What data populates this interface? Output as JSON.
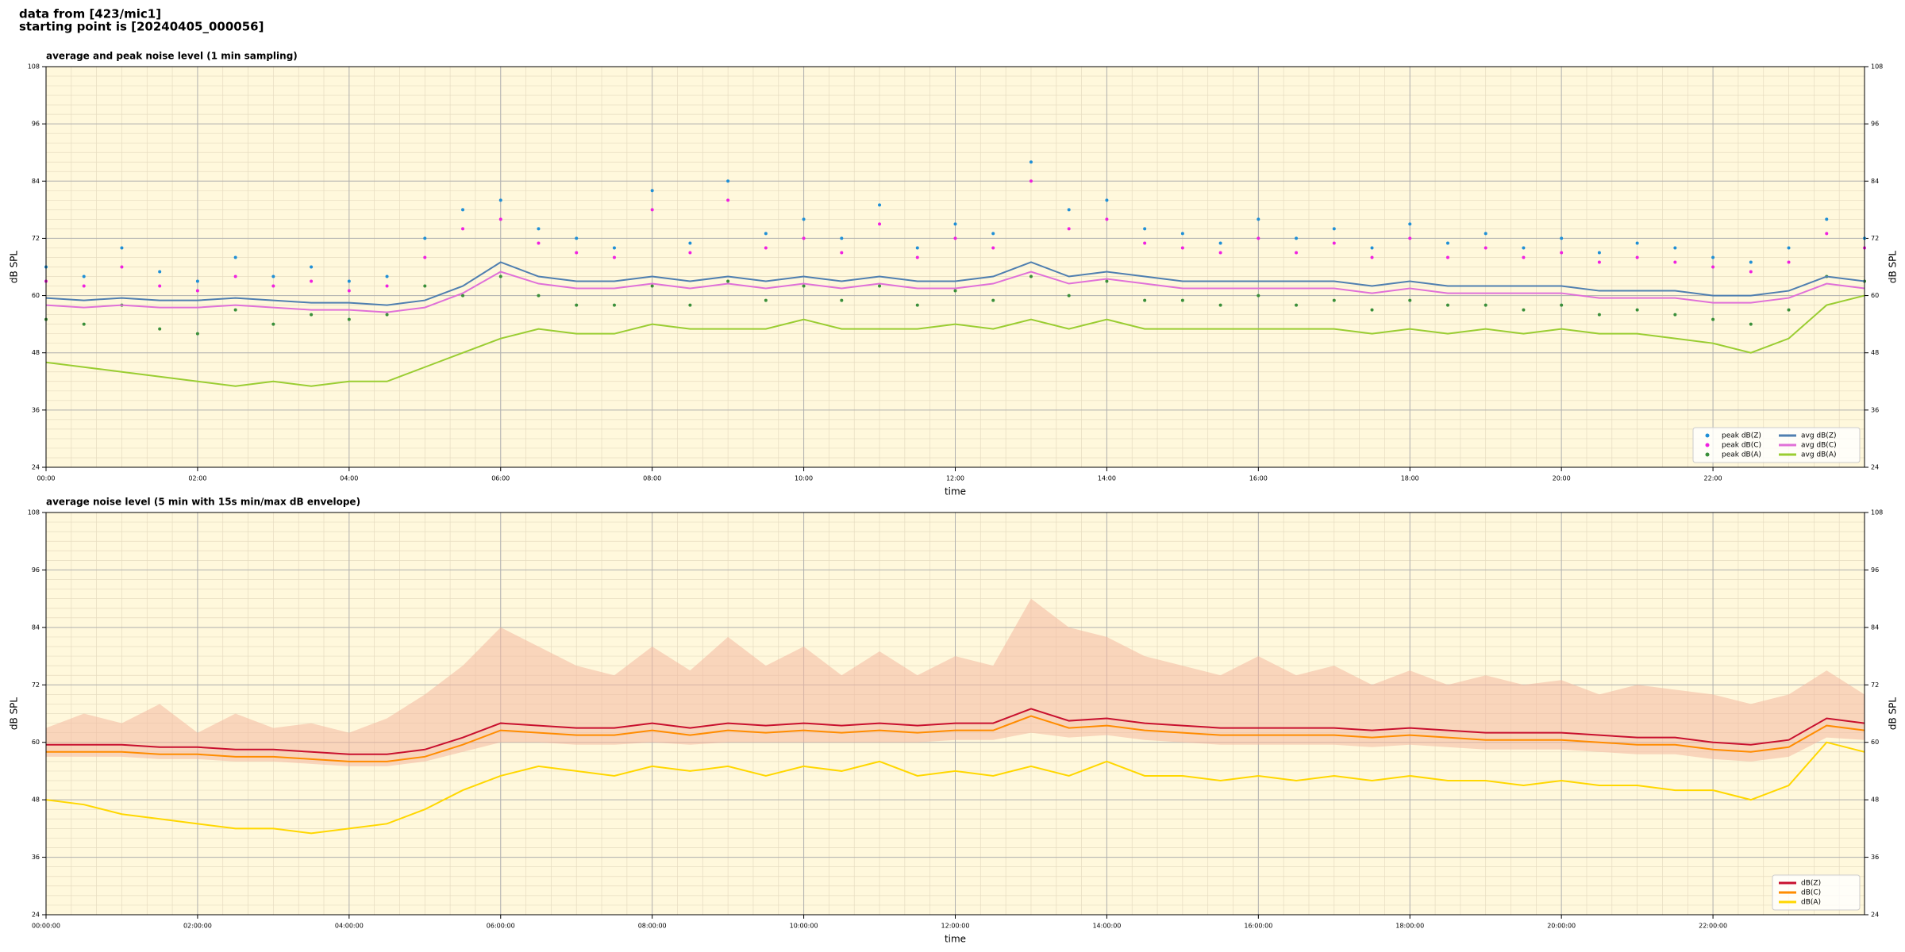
{
  "header": [
    "data from [423/mic1]",
    "starting point is [20240405_000056]"
  ],
  "chart_data": [
    {
      "type": "line",
      "title": "average and peak noise level (1 min sampling)",
      "xlabel": "time",
      "ylabel": "dB SPL",
      "background": "#fff8dc",
      "grid": true,
      "legend": "lower right",
      "legend_columns": 2,
      "x": [
        0,
        0.5,
        1,
        1.5,
        2,
        2.5,
        3,
        3.5,
        4,
        4.5,
        5,
        5.5,
        6,
        6.5,
        7,
        7.5,
        8,
        8.5,
        9,
        9.5,
        10,
        10.5,
        11,
        11.5,
        12,
        12.5,
        13,
        13.5,
        14,
        14.5,
        15,
        15.5,
        16,
        16.5,
        17,
        17.5,
        18,
        18.5,
        19,
        19.5,
        20,
        20.5,
        21,
        21.5,
        22,
        22.5,
        23,
        23.5,
        24
      ],
      "xlim": [
        0,
        24
      ],
      "xticks": [
        {
          "value": 0,
          "label": "00:00"
        },
        {
          "value": 2,
          "label": "02:00"
        },
        {
          "value": 4,
          "label": "04:00"
        },
        {
          "value": 6,
          "label": "06:00"
        },
        {
          "value": 8,
          "label": "08:00"
        },
        {
          "value": 10,
          "label": "10:00"
        },
        {
          "value": 12,
          "label": "12:00"
        },
        {
          "value": 14,
          "label": "14:00"
        },
        {
          "value": 16,
          "label": "16:00"
        },
        {
          "value": 18,
          "label": "18:00"
        },
        {
          "value": 20,
          "label": "20:00"
        },
        {
          "value": 22,
          "label": "22:00"
        }
      ],
      "ylim": [
        24,
        108
      ],
      "yticks": [
        24,
        36,
        48,
        60,
        72,
        84,
        96,
        108
      ],
      "series": [
        {
          "name": "peak dB(Z)",
          "kind": "dots",
          "color": "#1f8fd6",
          "values": [
            66,
            64,
            70,
            65,
            63,
            68,
            64,
            66,
            63,
            64,
            72,
            78,
            80,
            74,
            72,
            70,
            82,
            71,
            84,
            73,
            76,
            72,
            79,
            70,
            75,
            73,
            88,
            78,
            80,
            74,
            73,
            71,
            76,
            72,
            74,
            70,
            75,
            71,
            73,
            70,
            72,
            69,
            71,
            70,
            68,
            67,
            70,
            76,
            72
          ]
        },
        {
          "name": "peak dB(C)",
          "kind": "dots",
          "color": "#f020e0",
          "values": [
            63,
            62,
            66,
            62,
            61,
            64,
            62,
            63,
            61,
            62,
            68,
            74,
            76,
            71,
            69,
            68,
            78,
            69,
            80,
            70,
            72,
            69,
            75,
            68,
            72,
            70,
            84,
            74,
            76,
            71,
            70,
            69,
            72,
            69,
            71,
            68,
            72,
            68,
            70,
            68,
            69,
            67,
            68,
            67,
            66,
            65,
            67,
            73,
            70
          ]
        },
        {
          "name": "peak dB(A)",
          "kind": "dots",
          "color": "#3a8f3a",
          "values": [
            55,
            54,
            58,
            53,
            52,
            57,
            54,
            56,
            55,
            56,
            62,
            60,
            64,
            60,
            58,
            58,
            62,
            58,
            63,
            59,
            62,
            59,
            62,
            58,
            61,
            59,
            64,
            60,
            63,
            59,
            59,
            58,
            60,
            58,
            59,
            57,
            59,
            58,
            58,
            57,
            58,
            56,
            57,
            56,
            55,
            54,
            57,
            64,
            63
          ]
        },
        {
          "name": "avg dB(Z)",
          "kind": "line",
          "color": "#4f7fb0",
          "values": [
            59.5,
            59,
            59.5,
            59,
            59,
            59.5,
            59,
            58.5,
            58.5,
            58,
            59,
            62,
            67,
            64,
            63,
            63,
            64,
            63,
            64,
            63,
            64,
            63,
            64,
            63,
            63,
            64,
            67,
            64,
            65,
            64,
            63,
            63,
            63,
            63,
            63,
            62,
            63,
            62,
            62,
            62,
            62,
            61,
            61,
            61,
            60,
            60,
            61,
            64,
            63
          ]
        },
        {
          "name": "avg dB(C)",
          "kind": "line",
          "color": "#e070d8",
          "values": [
            58,
            57.5,
            58,
            57.5,
            57.5,
            58,
            57.5,
            57,
            57,
            56.5,
            57.5,
            60.5,
            65,
            62.5,
            61.5,
            61.5,
            62.5,
            61.5,
            62.5,
            61.5,
            62.5,
            61.5,
            62.5,
            61.5,
            61.5,
            62.5,
            65,
            62.5,
            63.5,
            62.5,
            61.5,
            61.5,
            61.5,
            61.5,
            61.5,
            60.5,
            61.5,
            60.5,
            60.5,
            60.5,
            60.5,
            59.5,
            59.5,
            59.5,
            58.5,
            58.5,
            59.5,
            62.5,
            61.5
          ]
        },
        {
          "name": "avg dB(A)",
          "kind": "line",
          "color": "#9acd32",
          "values": [
            46,
            45,
            44,
            43,
            42,
            41,
            42,
            41,
            42,
            42,
            45,
            48,
            51,
            53,
            52,
            52,
            54,
            53,
            53,
            53,
            55,
            53,
            53,
            53,
            54,
            53,
            55,
            53,
            55,
            53,
            53,
            53,
            53,
            53,
            53,
            52,
            53,
            52,
            53,
            52,
            53,
            52,
            52,
            51,
            50,
            48,
            51,
            58,
            60
          ]
        }
      ]
    },
    {
      "type": "line",
      "title": "average noise level (5 min with 15s min/max dB envelope)",
      "xlabel": "time",
      "ylabel": "dB SPL",
      "background": "#fff8dc",
      "grid": true,
      "legend": "lower right",
      "legend_columns": 1,
      "x": [
        0,
        0.5,
        1,
        1.5,
        2,
        2.5,
        3,
        3.5,
        4,
        4.5,
        5,
        5.5,
        6,
        6.5,
        7,
        7.5,
        8,
        8.5,
        9,
        9.5,
        10,
        10.5,
        11,
        11.5,
        12,
        12.5,
        13,
        13.5,
        14,
        14.5,
        15,
        15.5,
        16,
        16.5,
        17,
        17.5,
        18,
        18.5,
        19,
        19.5,
        20,
        20.5,
        21,
        21.5,
        22,
        22.5,
        23,
        23.5,
        24
      ],
      "xlim": [
        0,
        24
      ],
      "xticks": [
        {
          "value": 0,
          "label": "00:00:00"
        },
        {
          "value": 2,
          "label": "02:00:00"
        },
        {
          "value": 4,
          "label": "04:00:00"
        },
        {
          "value": 6,
          "label": "06:00:00"
        },
        {
          "value": 8,
          "label": "08:00:00"
        },
        {
          "value": 10,
          "label": "10:00:00"
        },
        {
          "value": 12,
          "label": "12:00:00"
        },
        {
          "value": 14,
          "label": "14:00:00"
        },
        {
          "value": 16,
          "label": "16:00:00"
        },
        {
          "value": 18,
          "label": "18:00:00"
        },
        {
          "value": 20,
          "label": "20:00:00"
        },
        {
          "value": 22,
          "label": "22:00:00"
        }
      ],
      "ylim": [
        24,
        108
      ],
      "yticks": [
        24,
        36,
        48,
        60,
        72,
        84,
        96,
        108
      ],
      "envelope": {
        "color": "#f4b8a0",
        "high": [
          63,
          66,
          64,
          68,
          62,
          66,
          63,
          64,
          62,
          65,
          70,
          76,
          84,
          80,
          76,
          74,
          80,
          75,
          82,
          76,
          80,
          74,
          79,
          74,
          78,
          76,
          90,
          84,
          82,
          78,
          76,
          74,
          78,
          74,
          76,
          72,
          75,
          72,
          74,
          72,
          73,
          70,
          72,
          71,
          70,
          68,
          70,
          75,
          70
        ],
        "low": [
          57,
          57,
          57,
          56.5,
          56.5,
          56,
          56,
          55.5,
          55,
          55,
          56,
          58,
          60,
          60,
          59.5,
          59.5,
          60,
          59.5,
          60,
          60,
          60,
          60,
          60,
          60,
          60.5,
          60.5,
          62,
          61,
          61.5,
          60.5,
          60,
          59.5,
          59.5,
          59.5,
          59.5,
          59,
          59.5,
          59,
          58.5,
          58.5,
          58.5,
          58,
          57.5,
          57.5,
          56.5,
          56,
          57,
          61,
          60.5
        ]
      },
      "series": [
        {
          "name": "dB(Z)",
          "kind": "line",
          "color": "#c8102e",
          "values": [
            59.5,
            59.5,
            59.5,
            59,
            59,
            58.5,
            58.5,
            58,
            57.5,
            57.5,
            58.5,
            61,
            64,
            63.5,
            63,
            63,
            64,
            63,
            64,
            63.5,
            64,
            63.5,
            64,
            63.5,
            64,
            64,
            67,
            64.5,
            65,
            64,
            63.5,
            63,
            63,
            63,
            63,
            62.5,
            63,
            62.5,
            62,
            62,
            62,
            61.5,
            61,
            61,
            60,
            59.5,
            60.5,
            65,
            64
          ]
        },
        {
          "name": "dB(C)",
          "kind": "line",
          "color": "#ff8c00",
          "values": [
            58,
            58,
            58,
            57.5,
            57.5,
            57,
            57,
            56.5,
            56,
            56,
            57,
            59.5,
            62.5,
            62,
            61.5,
            61.5,
            62.5,
            61.5,
            62.5,
            62,
            62.5,
            62,
            62.5,
            62,
            62.5,
            62.5,
            65.5,
            63,
            63.5,
            62.5,
            62,
            61.5,
            61.5,
            61.5,
            61.5,
            61,
            61.5,
            61,
            60.5,
            60.5,
            60.5,
            60,
            59.5,
            59.5,
            58.5,
            58,
            59,
            63.5,
            62.5
          ]
        },
        {
          "name": "dB(A)",
          "kind": "line",
          "color": "#ffd700",
          "values": [
            48,
            47,
            45,
            44,
            43,
            42,
            42,
            41,
            42,
            43,
            46,
            50,
            53,
            55,
            54,
            53,
            55,
            54,
            55,
            53,
            55,
            54,
            56,
            53,
            54,
            53,
            55,
            53,
            56,
            53,
            53,
            52,
            53,
            52,
            53,
            52,
            53,
            52,
            52,
            51,
            52,
            51,
            51,
            50,
            50,
            48,
            51,
            60,
            58
          ]
        }
      ]
    }
  ]
}
